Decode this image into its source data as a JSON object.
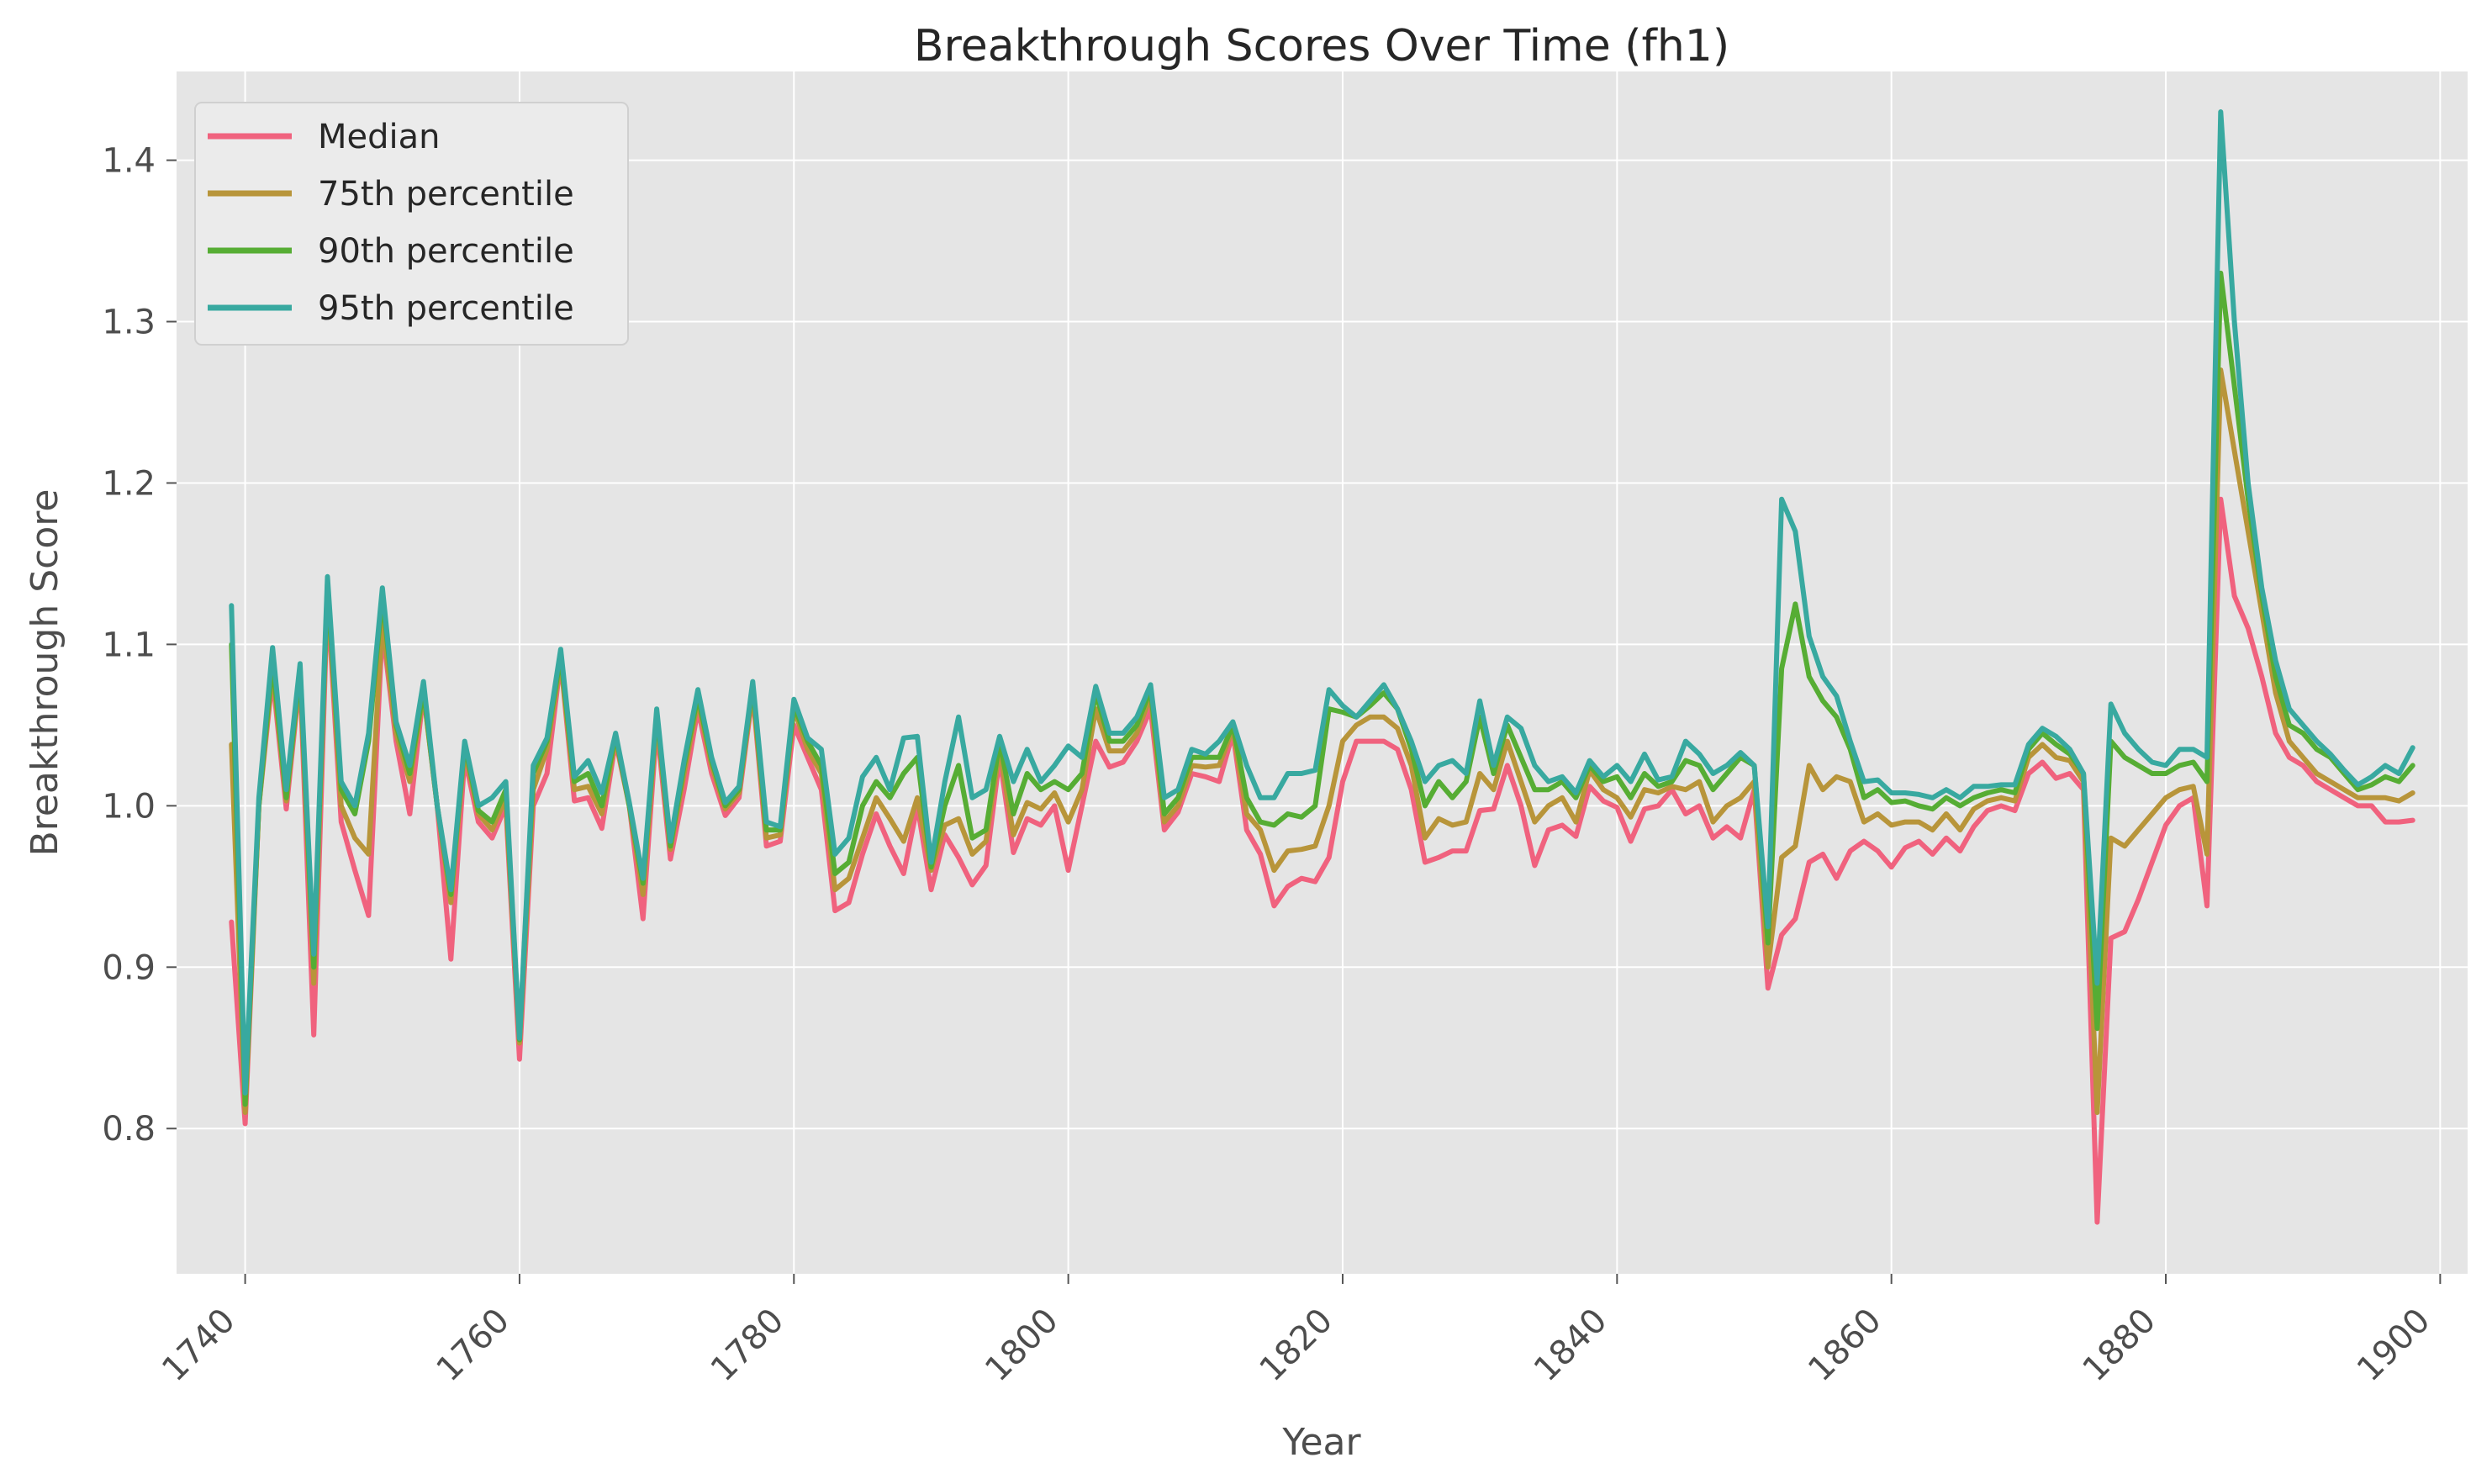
{
  "chart_data": {
    "type": "line",
    "title": "Breakthrough Scores Over Time (fh1)",
    "xlabel": "Year",
    "ylabel": "Breakthrough Score",
    "xlim": [
      1735,
      1902
    ],
    "ylim": [
      0.71,
      1.455
    ],
    "xticks": [
      1740,
      1760,
      1780,
      1800,
      1820,
      1840,
      1860,
      1880,
      1900
    ],
    "yticks": [
      0.8,
      0.9,
      1.0,
      1.1,
      1.2,
      1.3,
      1.4
    ],
    "ytick_labels": [
      "0.8",
      "0.9",
      "1.0",
      "1.1",
      "1.2",
      "1.3",
      "1.4"
    ],
    "grid": true,
    "legend_position": "top-left",
    "x": [
      1739,
      1740,
      1741,
      1742,
      1743,
      1744,
      1745,
      1746,
      1747,
      1748,
      1749,
      1750,
      1751,
      1752,
      1753,
      1754,
      1755,
      1756,
      1757,
      1758,
      1759,
      1760,
      1761,
      1762,
      1763,
      1764,
      1765,
      1766,
      1767,
      1768,
      1769,
      1770,
      1771,
      1772,
      1773,
      1774,
      1775,
      1776,
      1777,
      1778,
      1779,
      1780,
      1781,
      1782,
      1783,
      1784,
      1785,
      1786,
      1787,
      1788,
      1789,
      1790,
      1791,
      1792,
      1793,
      1794,
      1795,
      1796,
      1797,
      1798,
      1799,
      1800,
      1801,
      1802,
      1803,
      1804,
      1805,
      1806,
      1807,
      1808,
      1809,
      1810,
      1811,
      1812,
      1813,
      1814,
      1815,
      1816,
      1817,
      1818,
      1819,
      1820,
      1821,
      1822,
      1823,
      1824,
      1825,
      1826,
      1827,
      1828,
      1829,
      1830,
      1831,
      1832,
      1833,
      1834,
      1835,
      1836,
      1837,
      1838,
      1839,
      1840,
      1841,
      1842,
      1843,
      1844,
      1845,
      1846,
      1847,
      1848,
      1849,
      1850,
      1851,
      1852,
      1853,
      1854,
      1855,
      1856,
      1857,
      1858,
      1859,
      1860,
      1861,
      1862,
      1863,
      1864,
      1865,
      1866,
      1867,
      1868,
      1869,
      1870,
      1871,
      1872,
      1873,
      1874,
      1875,
      1876,
      1877,
      1878,
      1879,
      1880,
      1881,
      1882,
      1883,
      1884,
      1885,
      1886,
      1887,
      1888,
      1889,
      1890,
      1891,
      1892,
      1893,
      1894,
      1895,
      1896,
      1897,
      1898
    ],
    "series": [
      {
        "name": "Median",
        "color": "#f0627e",
        "values": [
          0.928,
          0.803,
          1.0,
          1.08,
          0.998,
          1.08,
          0.858,
          1.13,
          0.99,
          0.96,
          0.932,
          1.11,
          1.04,
          0.995,
          1.07,
          1.0,
          0.905,
          1.03,
          0.99,
          0.98,
          1.0,
          0.843,
          1.0,
          1.02,
          1.09,
          1.003,
          1.005,
          0.986,
          1.04,
          1.0,
          0.93,
          1.05,
          0.967,
          1.01,
          1.06,
          1.02,
          0.994,
          1.005,
          1.07,
          0.975,
          0.978,
          1.05,
          1.03,
          1.01,
          0.935,
          0.94,
          0.97,
          0.995,
          0.975,
          0.958,
          1.0,
          0.948,
          0.982,
          0.968,
          0.951,
          0.963,
          1.03,
          0.971,
          0.992,
          0.988,
          1.0,
          0.96,
          1.0,
          1.04,
          1.024,
          1.027,
          1.04,
          1.06,
          0.985,
          0.996,
          1.02,
          1.018,
          1.015,
          1.045,
          0.985,
          0.97,
          0.938,
          0.95,
          0.955,
          0.953,
          0.968,
          1.015,
          1.04,
          1.04,
          1.04,
          1.035,
          1.01,
          0.965,
          0.968,
          0.972,
          0.972,
          0.997,
          0.998,
          1.025,
          1.0,
          0.963,
          0.985,
          0.988,
          0.981,
          1.012,
          1.003,
          0.999,
          0.978,
          0.998,
          1.0,
          1.01,
          0.995,
          1.0,
          0.98,
          0.987,
          0.98,
          1.01,
          0.887,
          0.92,
          0.93,
          0.965,
          0.97,
          0.955,
          0.972,
          0.978,
          0.972,
          0.962,
          0.974,
          0.978,
          0.97,
          0.98,
          0.972,
          0.987,
          0.997,
          1.0,
          0.997,
          1.02,
          1.027,
          1.017,
          1.02,
          1.01,
          0.742,
          0.918,
          0.922,
          0.942,
          0.965,
          0.988,
          1.0,
          1.005,
          0.938,
          1.19,
          1.13,
          1.11,
          1.08,
          1.045,
          1.03,
          1.025,
          1.015,
          1.01,
          1.005,
          1.0,
          1.0,
          0.99,
          0.99,
          0.991
        ]
      },
      {
        "name": "75th percentile",
        "color": "#b8953a",
        "values": [
          1.038,
          0.81,
          1.0,
          1.085,
          1.003,
          1.082,
          0.89,
          1.135,
          1.0,
          0.98,
          0.97,
          1.115,
          1.045,
          1.015,
          1.07,
          1.0,
          0.94,
          1.035,
          0.995,
          0.985,
          1.005,
          0.853,
          1.01,
          1.035,
          1.09,
          1.01,
          1.012,
          0.995,
          1.042,
          1.0,
          0.945,
          1.055,
          0.973,
          1.02,
          1.065,
          1.025,
          0.998,
          1.008,
          1.072,
          0.98,
          0.982,
          1.06,
          1.035,
          1.02,
          0.948,
          0.955,
          0.98,
          1.005,
          0.992,
          0.978,
          1.005,
          0.96,
          0.988,
          0.992,
          0.97,
          0.978,
          1.035,
          0.982,
          1.002,
          0.998,
          1.008,
          0.99,
          1.01,
          1.06,
          1.034,
          1.034,
          1.045,
          1.068,
          0.99,
          1.0,
          1.025,
          1.024,
          1.025,
          1.048,
          0.995,
          0.985,
          0.96,
          0.972,
          0.973,
          0.975,
          1.0,
          1.04,
          1.05,
          1.055,
          1.055,
          1.048,
          1.025,
          0.98,
          0.992,
          0.988,
          0.99,
          1.02,
          1.01,
          1.04,
          1.015,
          0.99,
          1.0,
          1.005,
          0.99,
          1.022,
          1.01,
          1.005,
          0.993,
          1.01,
          1.008,
          1.012,
          1.01,
          1.015,
          0.99,
          1.0,
          1.005,
          1.015,
          0.9,
          0.968,
          0.975,
          1.025,
          1.01,
          1.018,
          1.015,
          0.99,
          0.995,
          0.988,
          0.99,
          0.99,
          0.985,
          0.995,
          0.985,
          0.998,
          1.003,
          1.005,
          1.003,
          1.03,
          1.038,
          1.03,
          1.028,
          1.015,
          0.81,
          0.98,
          0.975,
          0.985,
          0.995,
          1.005,
          1.01,
          1.012,
          0.97,
          1.27,
          1.22,
          1.17,
          1.12,
          1.07,
          1.04,
          1.03,
          1.02,
          1.015,
          1.01,
          1.005,
          1.005,
          1.005,
          1.003,
          1.008
        ]
      },
      {
        "name": "90th percentile",
        "color": "#56ad34",
        "values": [
          1.1,
          0.815,
          1.0,
          1.09,
          1.005,
          1.085,
          0.9,
          1.138,
          1.01,
          0.995,
          1.04,
          1.13,
          1.05,
          1.02,
          1.072,
          1.0,
          0.945,
          1.038,
          0.997,
          0.99,
          1.01,
          0.855,
          1.02,
          1.04,
          1.093,
          1.015,
          1.02,
          1.0,
          1.044,
          1.0,
          0.952,
          1.058,
          0.975,
          1.025,
          1.068,
          1.028,
          1.0,
          1.01,
          1.075,
          0.985,
          0.985,
          1.062,
          1.04,
          1.025,
          0.958,
          0.965,
          1.0,
          1.015,
          1.005,
          1.02,
          1.03,
          0.962,
          1.0,
          1.025,
          0.98,
          0.985,
          1.04,
          0.995,
          1.02,
          1.01,
          1.015,
          1.01,
          1.02,
          1.07,
          1.04,
          1.04,
          1.05,
          1.072,
          0.995,
          1.005,
          1.03,
          1.03,
          1.03,
          1.05,
          1.005,
          0.99,
          0.988,
          0.995,
          0.993,
          1.0,
          1.06,
          1.058,
          1.055,
          1.062,
          1.07,
          1.06,
          1.035,
          1.0,
          1.015,
          1.005,
          1.015,
          1.055,
          1.02,
          1.05,
          1.03,
          1.01,
          1.01,
          1.015,
          1.005,
          1.025,
          1.015,
          1.018,
          1.005,
          1.02,
          1.012,
          1.015,
          1.028,
          1.025,
          1.01,
          1.02,
          1.03,
          1.025,
          0.915,
          1.085,
          1.125,
          1.08,
          1.065,
          1.055,
          1.035,
          1.005,
          1.01,
          1.002,
          1.003,
          1.0,
          0.998,
          1.005,
          1.0,
          1.005,
          1.008,
          1.01,
          1.008,
          1.035,
          1.045,
          1.038,
          1.032,
          1.02,
          0.862,
          1.04,
          1.03,
          1.025,
          1.02,
          1.02,
          1.025,
          1.027,
          1.015,
          1.33,
          1.26,
          1.19,
          1.13,
          1.08,
          1.05,
          1.045,
          1.035,
          1.03,
          1.02,
          1.01,
          1.013,
          1.018,
          1.015,
          1.025
        ]
      },
      {
        "name": "95th percentile",
        "color": "#38a9a0",
        "values": [
          1.124,
          0.822,
          1.005,
          1.098,
          1.01,
          1.088,
          0.908,
          1.142,
          1.015,
          1.0,
          1.045,
          1.135,
          1.052,
          1.025,
          1.077,
          1.0,
          0.948,
          1.04,
          1.0,
          1.005,
          1.015,
          0.856,
          1.025,
          1.042,
          1.097,
          1.018,
          1.028,
          1.008,
          1.045,
          1.002,
          0.955,
          1.06,
          0.978,
          1.028,
          1.072,
          1.03,
          1.002,
          1.012,
          1.077,
          0.99,
          0.987,
          1.066,
          1.042,
          1.035,
          0.97,
          0.98,
          1.018,
          1.03,
          1.01,
          1.042,
          1.043,
          0.965,
          1.015,
          1.055,
          1.005,
          1.01,
          1.043,
          1.015,
          1.035,
          1.015,
          1.025,
          1.037,
          1.03,
          1.074,
          1.045,
          1.045,
          1.055,
          1.075,
          1.005,
          1.01,
          1.035,
          1.032,
          1.04,
          1.052,
          1.025,
          1.005,
          1.005,
          1.02,
          1.02,
          1.022,
          1.072,
          1.062,
          1.055,
          1.065,
          1.075,
          1.06,
          1.04,
          1.015,
          1.025,
          1.028,
          1.02,
          1.065,
          1.025,
          1.055,
          1.048,
          1.025,
          1.015,
          1.018,
          1.008,
          1.028,
          1.018,
          1.025,
          1.015,
          1.032,
          1.016,
          1.018,
          1.04,
          1.032,
          1.02,
          1.025,
          1.033,
          1.025,
          0.925,
          1.19,
          1.17,
          1.105,
          1.08,
          1.068,
          1.04,
          1.015,
          1.016,
          1.008,
          1.008,
          1.007,
          1.005,
          1.01,
          1.005,
          1.012,
          1.012,
          1.013,
          1.013,
          1.038,
          1.048,
          1.043,
          1.035,
          1.02,
          0.89,
          1.063,
          1.045,
          1.035,
          1.027,
          1.025,
          1.035,
          1.035,
          1.03,
          1.43,
          1.3,
          1.2,
          1.135,
          1.09,
          1.06,
          1.05,
          1.04,
          1.032,
          1.022,
          1.013,
          1.018,
          1.025,
          1.02,
          1.036
        ]
      }
    ]
  }
}
